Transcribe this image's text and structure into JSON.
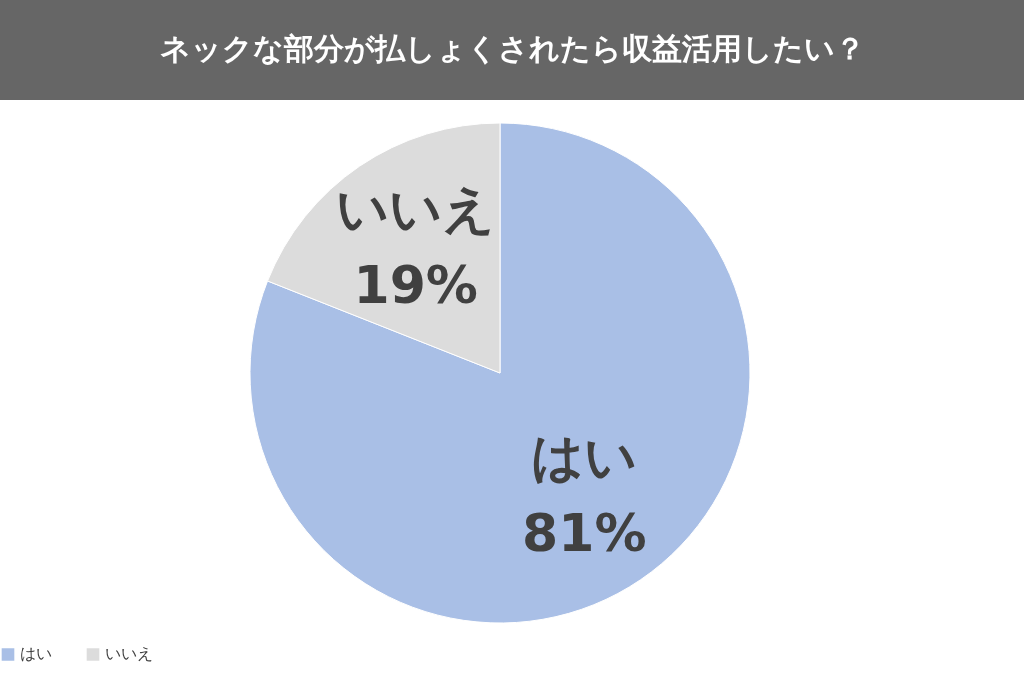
{
  "chart_data": {
    "type": "pie",
    "title": "ネックな部分が払しょくされたら収益活用したい？",
    "categories": [
      "はい",
      "いいえ"
    ],
    "values": [
      81,
      19
    ],
    "value_labels": [
      "81%",
      "19%"
    ],
    "colors": [
      "#a9bfe6",
      "#dcdcdc"
    ],
    "legend": "bottom"
  }
}
